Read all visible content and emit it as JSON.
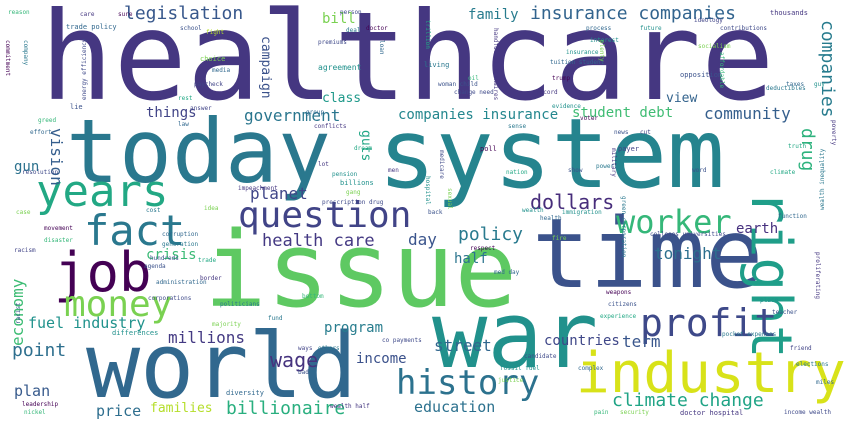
{
  "words": [
    {
      "id": "healthcare",
      "text": "healthcare",
      "color": "#453781"
    },
    {
      "id": "system",
      "text": "system",
      "color": "#25848e"
    },
    {
      "id": "today",
      "text": "today",
      "color": "#2a788e"
    },
    {
      "id": "issue",
      "text": "issue",
      "color": "#5ec962"
    },
    {
      "id": "time",
      "text": "time",
      "color": "#3b528b"
    },
    {
      "id": "war",
      "text": "war",
      "color": "#21918c"
    },
    {
      "id": "world",
      "text": "world",
      "color": "#31688e"
    },
    {
      "id": "industry",
      "text": "industry",
      "color": "#d8e219"
    },
    {
      "id": "years",
      "text": "years",
      "color": "#22a884"
    },
    {
      "id": "job",
      "text": "job",
      "color": "#440154"
    },
    {
      "id": "right",
      "text": "right",
      "color": "#1f9e89"
    },
    {
      "id": "fact",
      "text": "fact",
      "color": "#2a788e"
    },
    {
      "id": "question",
      "text": "question",
      "color": "#414487"
    },
    {
      "id": "money",
      "text": "money",
      "color": "#7ad151"
    },
    {
      "id": "worker",
      "text": "worker",
      "color": "#35b779"
    },
    {
      "id": "profit",
      "text": "profit",
      "color": "#3e4989"
    },
    {
      "id": "history",
      "text": "history",
      "color": "#2c728e"
    },
    {
      "id": "legislation",
      "text": "legislation",
      "color": "#38588c"
    },
    {
      "id": "insurance-companies-1",
      "text": "insurance companies",
      "color": "#32648e"
    },
    {
      "id": "companies-vert",
      "text": "companies",
      "color": "#287c8e"
    },
    {
      "id": "drug",
      "text": "drug",
      "color": "#2db27d"
    },
    {
      "id": "dollars",
      "text": "dollars",
      "color": "#472d7b"
    },
    {
      "id": "climate-change",
      "text": "climate change",
      "color": "#20a486"
    },
    {
      "id": "billionaire",
      "text": "billionaire",
      "color": "#29af7f"
    },
    {
      "id": "economy",
      "text": "economy",
      "color": "#3dbc74"
    },
    {
      "id": "wage",
      "text": "wage",
      "color": "#46337e"
    },
    {
      "id": "point",
      "text": "point",
      "color": "#2e6f8e"
    },
    {
      "id": "policy",
      "text": "policy",
      "color": "#297a8e"
    },
    {
      "id": "health-care",
      "text": "health care",
      "color": "#443983"
    },
    {
      "id": "community",
      "text": "community",
      "color": "#355f8d"
    },
    {
      "id": "government",
      "text": "government",
      "color": "#2a768e"
    },
    {
      "id": "companies-insurance",
      "text": "companies insurance",
      "color": "#24878e"
    },
    {
      "id": "student-debt",
      "text": "student debt",
      "color": "#3fbc73"
    },
    {
      "id": "vision",
      "text": "vision",
      "color": "#355e8d"
    },
    {
      "id": "tonight",
      "text": "tonight",
      "color": "#2d708e"
    },
    {
      "id": "planet",
      "text": "planet",
      "color": "#404688"
    },
    {
      "id": "earth",
      "text": "earth",
      "color": "#46307e"
    },
    {
      "id": "day",
      "text": "day",
      "color": "#3a548c"
    },
    {
      "id": "half",
      "text": "half",
      "color": "#2b748e"
    },
    {
      "id": "term",
      "text": "term",
      "color": "#39568c"
    },
    {
      "id": "countries",
      "text": "countries",
      "color": "#3f4788"
    },
    {
      "id": "millions",
      "text": "millions",
      "color": "#443a83"
    },
    {
      "id": "fuel-industry",
      "text": "fuel industry",
      "color": "#20928c"
    },
    {
      "id": "program",
      "text": "program",
      "color": "#287d8e"
    },
    {
      "id": "street",
      "text": "street",
      "color": "#31668e"
    },
    {
      "id": "income",
      "text": "income",
      "color": "#3b518b"
    },
    {
      "id": "education",
      "text": "education",
      "color": "#2c718e"
    },
    {
      "id": "price",
      "text": "price",
      "color": "#2e6e8e"
    },
    {
      "id": "plan",
      "text": "plan",
      "color": "#375a8c"
    },
    {
      "id": "families",
      "text": "families",
      "color": "#b5de2b"
    },
    {
      "id": "family",
      "text": "family",
      "color": "#287c8e"
    },
    {
      "id": "bill",
      "text": "bill",
      "color": "#7ad151"
    },
    {
      "id": "class",
      "text": "class",
      "color": "#1f998a"
    },
    {
      "id": "things",
      "text": "things",
      "color": "#414487"
    },
    {
      "id": "campaign",
      "text": "campaign",
      "color": "#3b528b"
    },
    {
      "id": "gun",
      "text": "gun",
      "color": "#2c728e"
    },
    {
      "id": "crisis",
      "text": "crisis",
      "color": "#3aba76"
    },
    {
      "id": "view",
      "text": "view",
      "color": "#33638d"
    },
    {
      "id": "guts",
      "text": "guts",
      "color": "#21a685"
    },
    {
      "id": "vision-vert",
      "text": "vision",
      "color": "#2d708e"
    },
    {
      "id": "sm-reason",
      "text": "reason",
      "color": "#35b779"
    },
    {
      "id": "sm-care",
      "text": "care",
      "color": "#453781"
    },
    {
      "id": "sm-trade-policy",
      "text": "trade policy",
      "color": "#31688e"
    },
    {
      "id": "sm-school",
      "text": "school",
      "color": "#3b528b"
    },
    {
      "id": "sm-fight",
      "text": "fight",
      "color": "#b5de2b"
    },
    {
      "id": "sm-deal",
      "text": "deal",
      "color": "#2a788e"
    },
    {
      "id": "sm-doctor",
      "text": "doctor",
      "color": "#440154"
    },
    {
      "id": "sm-premiums",
      "text": "premiums",
      "color": "#3e4989"
    },
    {
      "id": "sm-agreement",
      "text": "agreement",
      "color": "#21918c"
    },
    {
      "id": "sm-choice",
      "text": "choice",
      "color": "#7ad151"
    },
    {
      "id": "sm-media",
      "text": "media",
      "color": "#31688e"
    },
    {
      "id": "sm-paycheck",
      "text": "paycheck",
      "color": "#414487"
    },
    {
      "id": "sm-rest",
      "text": "rest",
      "color": "#22a884"
    },
    {
      "id": "sm-lie",
      "text": "lie",
      "color": "#3b528b"
    },
    {
      "id": "sm-living",
      "text": "living",
      "color": "#2a788e"
    },
    {
      "id": "sm-oil",
      "text": "oil",
      "color": "#35b779"
    },
    {
      "id": "sm-trump",
      "text": "trump",
      "color": "#440154"
    },
    {
      "id": "sm-change-need",
      "text": "change need",
      "color": "#3e4989"
    },
    {
      "id": "sm-record",
      "text": "record",
      "color": "#453781"
    },
    {
      "id": "sm-insurance",
      "text": "insurance",
      "color": "#21918c"
    },
    {
      "id": "sm-tuition-student",
      "text": "tuition student",
      "color": "#31688e"
    },
    {
      "id": "sm-opposition",
      "text": "opposition",
      "color": "#3b528b"
    },
    {
      "id": "sm-deductibles",
      "text": "deductibles",
      "color": "#2a788e"
    },
    {
      "id": "sm-thousands",
      "text": "thousands",
      "color": "#453781"
    },
    {
      "id": "sm-contributions",
      "text": "contributions",
      "color": "#3e4989"
    },
    {
      "id": "sm-socialism",
      "text": "socialism",
      "color": "#7ad151"
    },
    {
      "id": "sm-future",
      "text": "future",
      "color": "#21918c"
    },
    {
      "id": "sm-process",
      "text": "process",
      "color": "#31688e"
    },
    {
      "id": "sm-poll",
      "text": "poll",
      "color": "#440154"
    },
    {
      "id": "sm-payer",
      "text": "payer",
      "color": "#414487"
    },
    {
      "id": "sm-power",
      "text": "power",
      "color": "#2a788e"
    },
    {
      "id": "sm-truth",
      "text": "truth",
      "color": "#22a884"
    },
    {
      "id": "sm-word",
      "text": "word",
      "color": "#3b528b"
    },
    {
      "id": "sm-function",
      "text": "function",
      "color": "#31688e"
    },
    {
      "id": "sm-impeachment",
      "text": "impeachment",
      "color": "#453781"
    },
    {
      "id": "sm-prescription-drug",
      "text": "prescription drug",
      "color": "#3e4989"
    },
    {
      "id": "sm-billions",
      "text": "billions",
      "color": "#21918c"
    },
    {
      "id": "sm-gang",
      "text": "gang",
      "color": "#7ad151"
    },
    {
      "id": "sm-corruption",
      "text": "corruption",
      "color": "#31688e"
    },
    {
      "id": "sm-generation",
      "text": "generation",
      "color": "#2a788e"
    },
    {
      "id": "sm-disaster",
      "text": "disaster",
      "color": "#35b779"
    },
    {
      "id": "sm-movement",
      "text": "movement",
      "color": "#440154"
    },
    {
      "id": "sm-racism",
      "text": "racism",
      "color": "#414487"
    },
    {
      "id": "sm-agenda",
      "text": "agenda",
      "color": "#3b528b"
    },
    {
      "id": "sm-trade",
      "text": "trade",
      "color": "#22a884"
    },
    {
      "id": "sm-border",
      "text": "border",
      "color": "#453781"
    },
    {
      "id": "sm-administration",
      "text": "administration",
      "color": "#31688e"
    },
    {
      "id": "sm-corporations",
      "text": "corporations",
      "color": "#3e4989"
    },
    {
      "id": "sm-politicians",
      "text": "politicians",
      "color": "#2a788e"
    },
    {
      "id": "sm-majority",
      "text": "majority",
      "color": "#7ad151"
    },
    {
      "id": "sm-differences",
      "text": "differences",
      "color": "#21918c"
    },
    {
      "id": "sm-leadership",
      "text": "leadership",
      "color": "#440154"
    },
    {
      "id": "sm-nickel",
      "text": "nickel",
      "color": "#35b779"
    },
    {
      "id": "sm-diversity",
      "text": "diversity",
      "color": "#31688e"
    },
    {
      "id": "sm-bad",
      "text": "bad",
      "color": "#3b528b"
    },
    {
      "id": "sm-ways",
      "text": "ways",
      "color": "#414487"
    },
    {
      "id": "sm-others",
      "text": "others",
      "color": "#2a788e"
    },
    {
      "id": "sm-wealth-half",
      "text": "wealth half",
      "color": "#453781"
    },
    {
      "id": "sm-candidate",
      "text": "candidate",
      "color": "#3e4989"
    },
    {
      "id": "sm-fossil-fuel",
      "text": "fossil fuel",
      "color": "#21918c"
    },
    {
      "id": "sm-justice",
      "text": "justice",
      "color": "#7ad151"
    },
    {
      "id": "sm-complex",
      "text": "complex",
      "color": "#31688e"
    },
    {
      "id": "sm-weapons",
      "text": "weapons",
      "color": "#440154"
    },
    {
      "id": "sm-citizens",
      "text": "citizens",
      "color": "#3b528b"
    },
    {
      "id": "sm-experience",
      "text": "experience",
      "color": "#22a884"
    },
    {
      "id": "sm-pocket-expenses",
      "text": "pocket expenses",
      "color": "#2a788e"
    },
    {
      "id": "sm-doctor-hospital",
      "text": "doctor hospital",
      "color": "#453781"
    },
    {
      "id": "sm-income-wealth",
      "text": "income wealth",
      "color": "#3e4989"
    },
    {
      "id": "sm-miles",
      "text": "miles",
      "color": "#31688e"
    },
    {
      "id": "sm-place",
      "text": "place",
      "color": "#21918c"
    },
    {
      "id": "sm-pain",
      "text": "pain",
      "color": "#35b779"
    },
    {
      "id": "sm-security",
      "text": "security",
      "color": "#7ad151"
    },
    {
      "id": "sm-teacher",
      "text": "teacher",
      "color": "#3b528b"
    },
    {
      "id": "sm-friend",
      "text": "friend",
      "color": "#414487"
    },
    {
      "id": "sm-elections",
      "text": "elections",
      "color": "#2a788e"
    },
    {
      "id": "sm-proliferating",
      "text": "proliferating",
      "color": "#453781"
    },
    {
      "id": "sm-colleges-universities",
      "text": "colleges universities",
      "color": "#3e4989"
    },
    {
      "id": "sm-immigration",
      "text": "immigration",
      "color": "#21918c"
    },
    {
      "id": "sm-med-day",
      "text": "med day",
      "color": "#31688e"
    },
    {
      "id": "sm-respect",
      "text": "respect",
      "color": "#440154"
    },
    {
      "id": "sm-back",
      "text": "back",
      "color": "#3b528b"
    },
    {
      "id": "sm-nation",
      "text": "nation",
      "color": "#22a884"
    },
    {
      "id": "sm-idea",
      "text": "idea",
      "color": "#7ad151"
    },
    {
      "id": "sm-cost",
      "text": "cost",
      "color": "#2a788e"
    },
    {
      "id": "sm-conflicts",
      "text": "conflicts",
      "color": "#453781"
    },
    {
      "id": "sm-greed",
      "text": "greed",
      "color": "#35b779"
    },
    {
      "id": "sm-effort",
      "text": "effort",
      "color": "#31688e"
    },
    {
      "id": "sm-resolution",
      "text": "resolution",
      "color": "#3e4989"
    },
    {
      "id": "sm-evidence",
      "text": "evidence",
      "color": "#21918c"
    },
    {
      "id": "sm-cut",
      "text": "cut",
      "color": "#414487"
    },
    {
      "id": "sm-sense",
      "text": "sense",
      "color": "#2a788e"
    },
    {
      "id": "sm-men",
      "text": "men",
      "color": "#453781"
    },
    {
      "id": "sm-show",
      "text": "show",
      "color": "#3b528b"
    },
    {
      "id": "sm-health",
      "text": "health",
      "color": "#31688e"
    },
    {
      "id": "sm-pension",
      "text": "pension",
      "color": "#21918c"
    },
    {
      "id": "sm-case",
      "text": "case",
      "color": "#7ad151"
    },
    {
      "id": "sm-commitment",
      "text": "commitment",
      "color": "#440154"
    },
    {
      "id": "sm-company",
      "text": "company",
      "color": "#2a788e"
    },
    {
      "id": "sm-energy-efficiency",
      "text": "energy efficiency",
      "color": "#3e4989"
    },
    {
      "id": "sm-trillion",
      "text": "trillion",
      "color": "#22a884"
    },
    {
      "id": "sm-handful-billionaires",
      "text": "handful billionaires",
      "color": "#453781"
    },
    {
      "id": "sm-loan",
      "text": "loan",
      "color": "#31688e"
    },
    {
      "id": "sm-woman-child",
      "text": "woman child",
      "color": "#3b528b"
    },
    {
      "id": "sm-interest",
      "text": "interest",
      "color": "#21918c"
    },
    {
      "id": "sm-ideology",
      "text": "ideology",
      "color": "#414487"
    },
    {
      "id": "sm-wealth-inequality",
      "text": "wealth inequality",
      "color": "#2a788e"
    },
    {
      "id": "sm-affordable",
      "text": "affordable",
      "color": "#35b779"
    },
    {
      "id": "sm-poverty",
      "text": "poverty",
      "color": "#453781"
    },
    {
      "id": "sm-plenty",
      "text": "plenty",
      "color": "#7ad151"
    },
    {
      "id": "sm-group",
      "text": "group",
      "color": "#31688e"
    },
    {
      "id": "sm-person",
      "text": "person",
      "color": "#3e4989"
    },
    {
      "id": "sm-dream",
      "text": "dream",
      "color": "#22a884"
    },
    {
      "id": "sm-wealth",
      "text": "wealth",
      "color": "#21918c"
    },
    {
      "id": "sm-hundreds",
      "text": "hundreds",
      "color": "#3b528b"
    },
    {
      "id": "sm-voter",
      "text": "voter",
      "color": "#440154"
    },
    {
      "id": "sm-green-corporation",
      "text": "green corporation",
      "color": "#2a788e"
    },
    {
      "id": "sm-military",
      "text": "military",
      "color": "#453781"
    },
    {
      "id": "sm-law",
      "text": "law",
      "color": "#31688e"
    },
    {
      "id": "sm-answer",
      "text": "answer",
      "color": "#414487"
    },
    {
      "id": "sm-hospital",
      "text": "hospital",
      "color": "#21918c"
    },
    {
      "id": "sm-sexual",
      "text": "sexual",
      "color": "#7ad151"
    },
    {
      "id": "sm-medicare",
      "text": "medicare",
      "color": "#3e4989"
    },
    {
      "id": "sm-racist",
      "text": "racist",
      "color": "#3b528b"
    },
    {
      "id": "sm-fund",
      "text": "fund",
      "color": "#2a788e"
    },
    {
      "id": "sm-bottom",
      "text": "bottom",
      "color": "#35b779"
    },
    {
      "id": "sm-lot",
      "text": "lot",
      "color": "#453781"
    },
    {
      "id": "sm-taxes",
      "text": "taxes",
      "color": "#31688e"
    },
    {
      "id": "sm-guy",
      "text": "guy",
      "color": "#21918c"
    },
    {
      "id": "sm-sure",
      "text": "sure",
      "color": "#440154"
    },
    {
      "id": "sm-co-payments",
      "text": "co payments",
      "color": "#3e4989"
    },
    {
      "id": "sm-climate",
      "text": "climate",
      "color": "#22a884"
    },
    {
      "id": "sm-fire",
      "text": "fire",
      "color": "#7ad151"
    },
    {
      "id": "sm-news",
      "text": "news",
      "color": "#3b528b"
    }
  ]
}
